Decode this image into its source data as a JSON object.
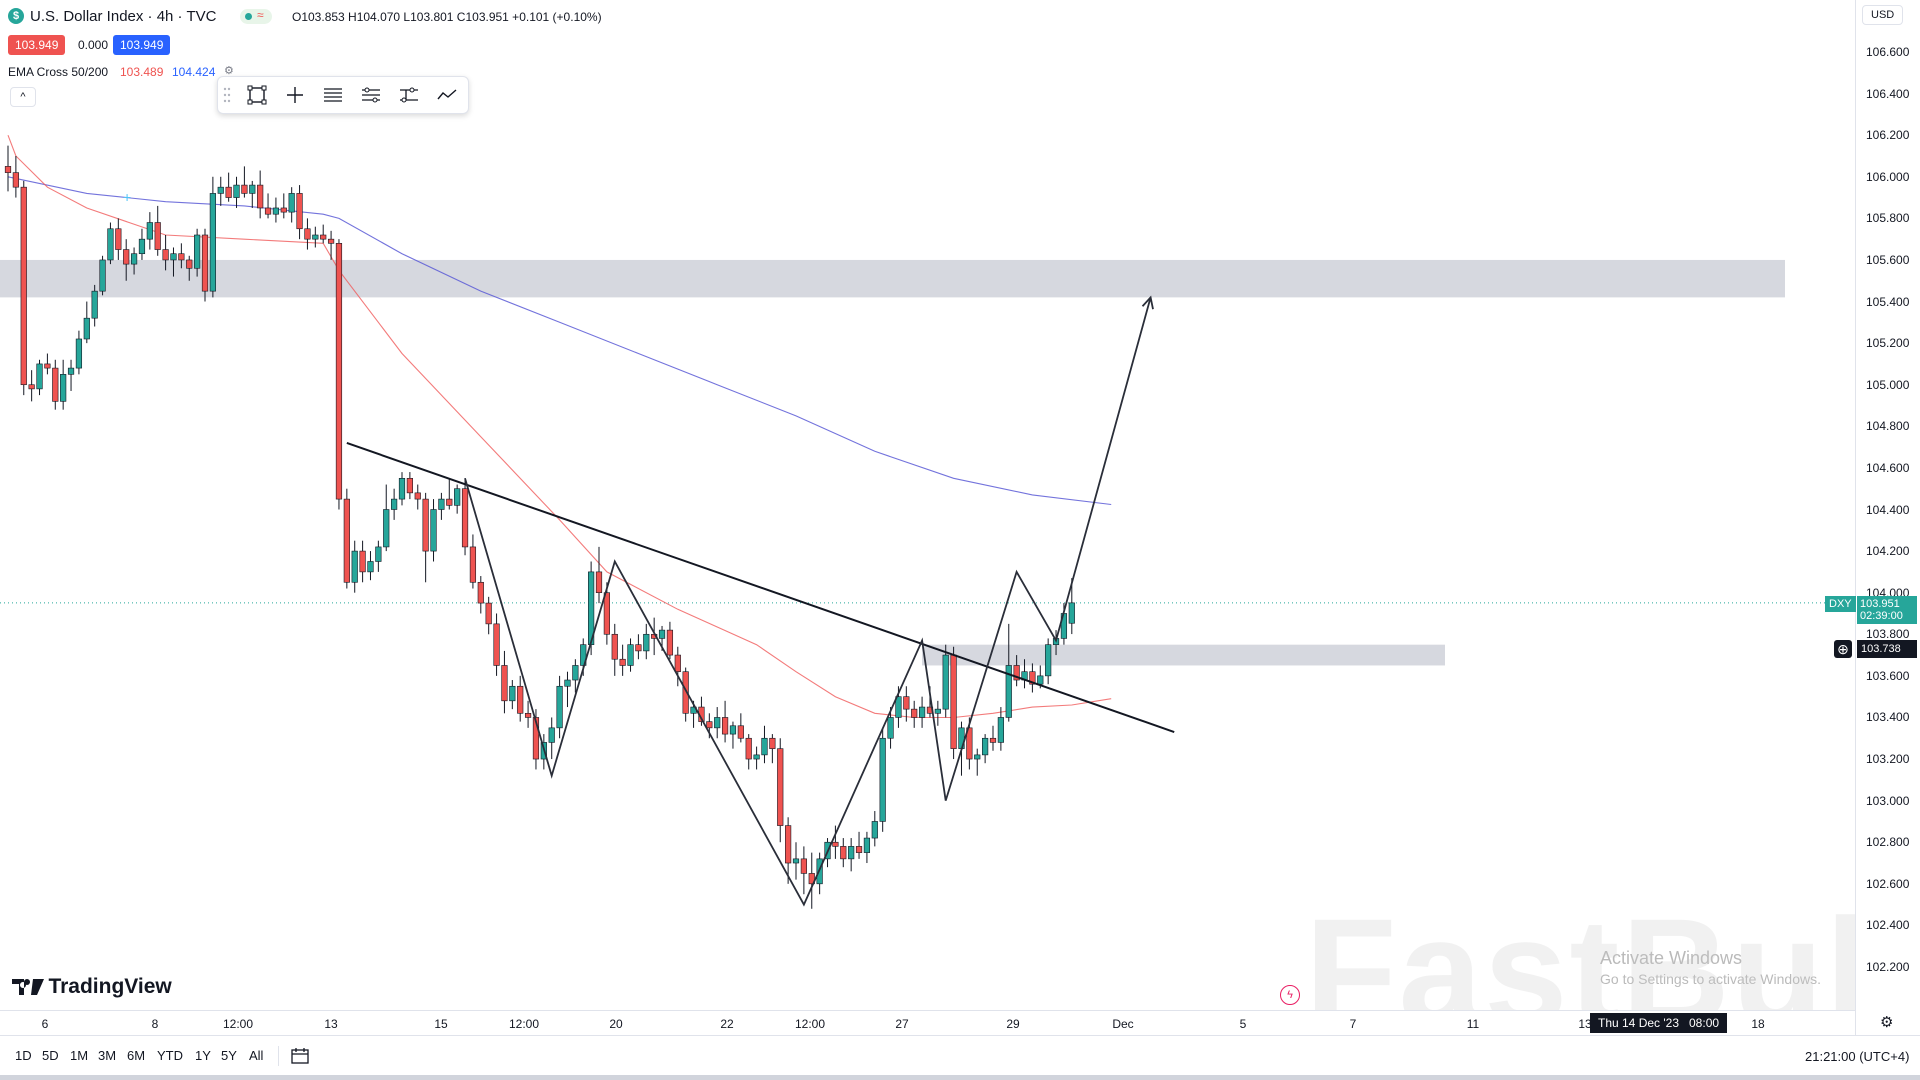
{
  "header": {
    "title": "U.S. Dollar Index · 4h · TVC",
    "ohlc": "O103.853 H104.070 L103.801 C103.951 +0.101 (+0.10%)",
    "bid": "103.949",
    "spread": "0.000",
    "ask": "103.949",
    "indicator_name": "EMA Cross 50/200",
    "ema_fast": "103.489",
    "ema_slow": "104.424",
    "indicator_settings": "⚙"
  },
  "currency": "USD",
  "logo_text": "TradingView",
  "price_label": {
    "symbol": "DXY",
    "price": "103.951",
    "countdown": "02:39:00",
    "crosshair": "103.738"
  },
  "price_ticks": [
    "106.600",
    "106.400",
    "106.200",
    "106.000",
    "105.800",
    "105.600",
    "105.400",
    "105.200",
    "105.000",
    "104.800",
    "104.600",
    "104.400",
    "104.200",
    "104.000",
    "103.800",
    "103.600",
    "103.400",
    "103.200",
    "103.000",
    "102.800",
    "102.600",
    "102.400",
    "102.200"
  ],
  "time_ticks": [
    "6",
    "8",
    "12:00",
    "13",
    "15",
    "12:00",
    "20",
    "22",
    "12:00",
    "27",
    "29",
    "Dec",
    "5",
    "7",
    "11",
    "13",
    "18"
  ],
  "crosshair_time": "Thu 14 Dec '23   08:00",
  "ranges": [
    "1D",
    "5D",
    "1M",
    "3M",
    "6M",
    "YTD",
    "1Y",
    "5Y",
    "All"
  ],
  "clock": "21:21:00 (UTC+4)",
  "watermark": "FastBull",
  "windows_notice": {
    "line1": "Activate Windows",
    "line2": "Go to Settings to activate Windows."
  },
  "colors": {
    "up": "#26a69a",
    "down": "#ef5350",
    "ema_fast": "#f05a5a",
    "ema_slow": "#5b5bd6",
    "zone": "#d1d4dc",
    "accent": "#2962ff"
  },
  "chart_data": {
    "type": "candlestick",
    "title": "U.S. Dollar Index · 4h · TVC",
    "ylim": [
      102.05,
      106.75
    ],
    "candles": [
      [
        106.05,
        106.15,
        105.93,
        106.02
      ],
      [
        106.02,
        106.1,
        105.9,
        105.95
      ],
      [
        105.95,
        105.98,
        104.95,
        105.0
      ],
      [
        105.0,
        105.07,
        104.92,
        104.98
      ],
      [
        104.98,
        105.12,
        104.95,
        105.1
      ],
      [
        105.1,
        105.15,
        105.05,
        105.08
      ],
      [
        105.08,
        105.12,
        104.88,
        104.92
      ],
      [
        104.92,
        105.12,
        104.88,
        105.05
      ],
      [
        105.05,
        105.12,
        104.97,
        105.08
      ],
      [
        105.08,
        105.26,
        105.05,
        105.22
      ],
      [
        105.22,
        105.4,
        105.2,
        105.32
      ],
      [
        105.32,
        105.48,
        105.28,
        105.45
      ],
      [
        105.45,
        105.62,
        105.43,
        105.6
      ],
      [
        105.6,
        105.78,
        105.58,
        105.75
      ],
      [
        105.75,
        105.8,
        105.6,
        105.65
      ],
      [
        105.65,
        105.7,
        105.5,
        105.58
      ],
      [
        105.58,
        105.66,
        105.53,
        105.63
      ],
      [
        105.63,
        105.75,
        105.6,
        105.7
      ],
      [
        105.7,
        105.83,
        105.65,
        105.78
      ],
      [
        105.78,
        105.86,
        105.62,
        105.65
      ],
      [
        105.65,
        105.72,
        105.55,
        105.6
      ],
      [
        105.6,
        105.66,
        105.52,
        105.63
      ],
      [
        105.63,
        105.68,
        105.56,
        105.6
      ],
      [
        105.6,
        105.62,
        105.5,
        105.56
      ],
      [
        105.56,
        105.75,
        105.52,
        105.72
      ],
      [
        105.72,
        105.75,
        105.4,
        105.45
      ],
      [
        105.45,
        106.0,
        105.42,
        105.92
      ],
      [
        105.92,
        106.0,
        105.86,
        105.95
      ],
      [
        105.95,
        106.02,
        105.88,
        105.9
      ],
      [
        105.9,
        106.0,
        105.85,
        105.96
      ],
      [
        105.96,
        106.05,
        105.9,
        105.92
      ],
      [
        105.92,
        105.98,
        105.85,
        105.96
      ],
      [
        105.96,
        106.03,
        105.8,
        105.85
      ],
      [
        105.85,
        105.92,
        105.8,
        105.82
      ],
      [
        105.82,
        105.9,
        105.78,
        105.85
      ],
      [
        105.85,
        105.92,
        105.8,
        105.83
      ],
      [
        105.83,
        105.95,
        105.78,
        105.92
      ],
      [
        105.92,
        105.96,
        105.7,
        105.75
      ],
      [
        105.75,
        105.8,
        105.65,
        105.7
      ],
      [
        105.7,
        105.76,
        105.66,
        105.72
      ],
      [
        105.72,
        105.77,
        105.68,
        105.7
      ],
      [
        105.7,
        105.74,
        105.6,
        105.68
      ],
      [
        105.68,
        105.7,
        104.4,
        104.45
      ],
      [
        104.45,
        104.5,
        104.02,
        104.05
      ],
      [
        104.05,
        104.25,
        104.0,
        104.2
      ],
      [
        104.2,
        104.25,
        104.05,
        104.1
      ],
      [
        104.1,
        104.2,
        104.06,
        104.15
      ],
      [
        104.15,
        104.25,
        104.1,
        104.22
      ],
      [
        104.22,
        104.52,
        104.2,
        104.4
      ],
      [
        104.4,
        104.5,
        104.35,
        104.45
      ],
      [
        104.45,
        104.58,
        104.42,
        104.55
      ],
      [
        104.55,
        104.58,
        104.45,
        104.48
      ],
      [
        104.48,
        104.52,
        104.4,
        104.45
      ],
      [
        104.45,
        104.48,
        104.05,
        104.2
      ],
      [
        104.2,
        104.45,
        104.15,
        104.4
      ],
      [
        104.4,
        104.48,
        104.35,
        104.45
      ],
      [
        104.45,
        104.55,
        104.4,
        104.42
      ],
      [
        104.42,
        104.52,
        104.38,
        104.5
      ],
      [
        104.5,
        104.55,
        104.18,
        104.22
      ],
      [
        104.22,
        104.28,
        104.02,
        104.05
      ],
      [
        104.05,
        104.08,
        103.9,
        103.95
      ],
      [
        103.95,
        103.98,
        103.8,
        103.85
      ],
      [
        103.85,
        103.9,
        103.6,
        103.65
      ],
      [
        103.65,
        103.72,
        103.42,
        103.48
      ],
      [
        103.48,
        103.58,
        103.44,
        103.55
      ],
      [
        103.55,
        103.6,
        103.38,
        103.42
      ],
      [
        103.42,
        103.48,
        103.35,
        103.4
      ],
      [
        103.4,
        103.44,
        103.15,
        103.2
      ],
      [
        103.2,
        103.32,
        103.15,
        103.28
      ],
      [
        103.28,
        103.4,
        103.2,
        103.35
      ],
      [
        103.35,
        103.6,
        103.3,
        103.55
      ],
      [
        103.55,
        103.62,
        103.45,
        103.58
      ],
      [
        103.58,
        103.68,
        103.52,
        103.65
      ],
      [
        103.65,
        103.78,
        103.6,
        103.75
      ],
      [
        103.75,
        104.15,
        103.7,
        104.1
      ],
      [
        104.1,
        104.22,
        103.95,
        104.0
      ],
      [
        104.0,
        104.05,
        103.75,
        103.8
      ],
      [
        103.8,
        103.85,
        103.6,
        103.68
      ],
      [
        103.68,
        103.75,
        103.6,
        103.65
      ],
      [
        103.65,
        103.78,
        103.62,
        103.75
      ],
      [
        103.75,
        103.8,
        103.68,
        103.72
      ],
      [
        103.72,
        103.85,
        103.68,
        103.8
      ],
      [
        103.8,
        103.88,
        103.7,
        103.78
      ],
      [
        103.78,
        103.84,
        103.72,
        103.82
      ],
      [
        103.82,
        103.86,
        103.68,
        103.7
      ],
      [
        103.7,
        103.74,
        103.55,
        103.62
      ],
      [
        103.62,
        103.64,
        103.38,
        103.42
      ],
      [
        103.42,
        103.48,
        103.35,
        103.45
      ],
      [
        103.45,
        103.5,
        103.36,
        103.38
      ],
      [
        103.38,
        103.42,
        103.3,
        103.35
      ],
      [
        103.35,
        103.45,
        103.3,
        103.4
      ],
      [
        103.4,
        103.48,
        103.28,
        103.32
      ],
      [
        103.32,
        103.38,
        103.25,
        103.36
      ],
      [
        103.36,
        103.42,
        103.28,
        103.3
      ],
      [
        103.3,
        103.32,
        103.15,
        103.2
      ],
      [
        103.2,
        103.26,
        103.15,
        103.22
      ],
      [
        103.22,
        103.36,
        103.18,
        103.3
      ],
      [
        103.3,
        103.32,
        103.18,
        103.25
      ],
      [
        103.25,
        103.3,
        102.8,
        102.88
      ],
      [
        102.88,
        102.92,
        102.6,
        102.7
      ],
      [
        102.7,
        102.8,
        102.62,
        102.72
      ],
      [
        102.72,
        102.78,
        102.55,
        102.65
      ],
      [
        102.65,
        102.75,
        102.48,
        102.6
      ],
      [
        102.6,
        102.75,
        102.55,
        102.72
      ],
      [
        102.72,
        102.82,
        102.68,
        102.8
      ],
      [
        102.8,
        102.88,
        102.72,
        102.78
      ],
      [
        102.78,
        102.82,
        102.68,
        102.72
      ],
      [
        102.72,
        102.82,
        102.66,
        102.78
      ],
      [
        102.78,
        102.85,
        102.72,
        102.75
      ],
      [
        102.75,
        102.85,
        102.7,
        102.82
      ],
      [
        102.82,
        102.95,
        102.78,
        102.9
      ],
      [
        102.9,
        103.35,
        102.85,
        103.3
      ],
      [
        103.3,
        103.45,
        103.25,
        103.4
      ],
      [
        103.4,
        103.55,
        103.35,
        103.5
      ],
      [
        103.5,
        103.55,
        103.38,
        103.44
      ],
      [
        103.44,
        103.48,
        103.35,
        103.4
      ],
      [
        103.4,
        103.5,
        103.35,
        103.45
      ],
      [
        103.45,
        103.55,
        103.4,
        103.42
      ],
      [
        103.42,
        103.48,
        103.36,
        103.44
      ],
      [
        103.44,
        103.75,
        103.4,
        103.7
      ],
      [
        103.7,
        103.74,
        103.2,
        103.25
      ],
      [
        103.25,
        103.38,
        103.12,
        103.35
      ],
      [
        103.35,
        103.4,
        103.15,
        103.2
      ],
      [
        103.2,
        103.25,
        103.12,
        103.22
      ],
      [
        103.22,
        103.32,
        103.18,
        103.3
      ],
      [
        103.3,
        103.36,
        103.24,
        103.28
      ],
      [
        103.28,
        103.45,
        103.24,
        103.4
      ],
      [
        103.4,
        103.85,
        103.38,
        103.65
      ],
      [
        103.65,
        103.7,
        103.55,
        103.58
      ],
      [
        103.58,
        103.68,
        103.54,
        103.62
      ],
      [
        103.62,
        103.66,
        103.52,
        103.56
      ],
      [
        103.56,
        103.65,
        103.54,
        103.6
      ],
      [
        103.6,
        103.78,
        103.56,
        103.75
      ],
      [
        103.75,
        103.82,
        103.7,
        103.78
      ],
      [
        103.78,
        103.95,
        103.75,
        103.9
      ],
      [
        103.853,
        104.07,
        103.801,
        103.951
      ]
    ],
    "ema_fast": [
      [
        0,
        106.2
      ],
      [
        1,
        106.1
      ],
      [
        5,
        105.95
      ],
      [
        10,
        105.85
      ],
      [
        20,
        105.72
      ],
      [
        30,
        105.7
      ],
      [
        40,
        105.68
      ],
      [
        42,
        105.55
      ],
      [
        50,
        105.15
      ],
      [
        60,
        104.75
      ],
      [
        70,
        104.35
      ],
      [
        76,
        104.1
      ],
      [
        85,
        103.92
      ],
      [
        95,
        103.75
      ],
      [
        100,
        103.62
      ],
      [
        105,
        103.5
      ],
      [
        110,
        103.42
      ],
      [
        115,
        103.4
      ],
      [
        120,
        103.4
      ],
      [
        125,
        103.42
      ],
      [
        130,
        103.45
      ],
      [
        135,
        103.46
      ],
      [
        140,
        103.49
      ]
    ],
    "ema_slow": [
      [
        0,
        106.0
      ],
      [
        10,
        105.92
      ],
      [
        20,
        105.88
      ],
      [
        30,
        105.86
      ],
      [
        40,
        105.82
      ],
      [
        42,
        105.8
      ],
      [
        50,
        105.63
      ],
      [
        60,
        105.45
      ],
      [
        70,
        105.3
      ],
      [
        80,
        105.15
      ],
      [
        90,
        105.0
      ],
      [
        100,
        104.85
      ],
      [
        110,
        104.68
      ],
      [
        120,
        104.55
      ],
      [
        130,
        104.47
      ],
      [
        140,
        104.424
      ]
    ],
    "zones": [
      [
        105.42,
        105.6
      ],
      [
        103.65,
        103.75
      ]
    ],
    "trendline": {
      "from": [
        43,
        104.72
      ],
      "to": [
        148,
        103.33
      ]
    },
    "pattern_path": [
      [
        58,
        104.55
      ],
      [
        69,
        103.12
      ],
      [
        77,
        104.15
      ],
      [
        101,
        102.5
      ],
      [
        116,
        103.77
      ],
      [
        119,
        103.0
      ],
      [
        128,
        104.1
      ],
      [
        133,
        103.77
      ],
      [
        145,
        105.42
      ]
    ],
    "last_price": 103.951
  }
}
